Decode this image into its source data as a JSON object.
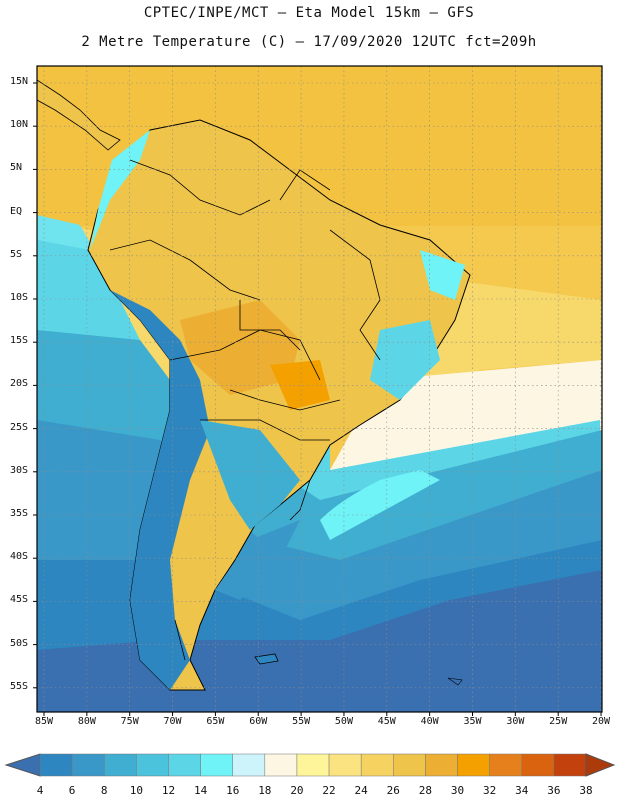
{
  "title_line1": "CPTEC/INPE/MCT –  Eta Model 15km – GFS",
  "title_line2": "2 Metre Temperature (C) – 17/09/2020 12UTC fct=209h",
  "lat_labels": [
    "15N",
    "10N",
    "5N",
    "EQ",
    "5S",
    "10S",
    "15S",
    "20S",
    "25S",
    "30S",
    "35S",
    "40S",
    "45S",
    "50S",
    "55S"
  ],
  "lon_labels": [
    "85W",
    "80W",
    "75W",
    "70W",
    "65W",
    "60W",
    "55W",
    "50W",
    "45W",
    "40W",
    "35W",
    "30W",
    "25W",
    "20W"
  ],
  "colorbar": {
    "labels": [
      "4",
      "6",
      "8",
      "10",
      "12",
      "14",
      "16",
      "18",
      "20",
      "22",
      "24",
      "26",
      "28",
      "30",
      "32",
      "34",
      "36",
      "38"
    ],
    "colors": [
      "#3a6fb0",
      "#2e86c1",
      "#3a98c8",
      "#40aed0",
      "#4cc3dc",
      "#5cd6e6",
      "#6ff3f7",
      "#cdf3fb",
      "#fdf6e3",
      "#fef59a",
      "#fbe381",
      "#f6d361",
      "#efc44a",
      "#ecaf34",
      "#f4a100",
      "#e5801c",
      "#d9630e",
      "#c2410c",
      "#ad3a0b"
    ]
  },
  "chart_data": {
    "type": "heatmap",
    "variable": "2 Metre Temperature (C)",
    "extent": {
      "lon": [
        -85,
        -20
      ],
      "lat": [
        -58,
        17
      ]
    },
    "colorbar_range": [
      4,
      38
    ]
  }
}
